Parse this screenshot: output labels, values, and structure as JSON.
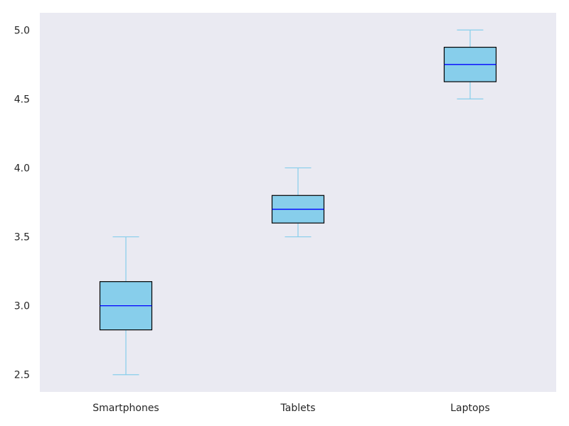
{
  "chart_data": {
    "type": "box",
    "title": "",
    "xlabel": "",
    "ylabel": "",
    "categories": [
      "Smartphones",
      "Tablets",
      "Laptops"
    ],
    "boxes": [
      {
        "category": "Smartphones",
        "min": 2.5,
        "q1": 2.825,
        "median": 3.0,
        "q3": 3.175,
        "max": 3.5
      },
      {
        "category": "Tablets",
        "min": 3.5,
        "q1": 3.6,
        "median": 3.7,
        "q3": 3.8,
        "max": 4.0
      },
      {
        "category": "Laptops",
        "min": 4.5,
        "q1": 4.625,
        "median": 4.75,
        "q3": 4.875,
        "max": 5.0
      }
    ],
    "yticks": [
      "2.5",
      "3.0",
      "3.5",
      "4.0",
      "4.5",
      "5.0"
    ],
    "ylim": [
      2.375,
      5.125
    ],
    "grid": false,
    "colors": {
      "background": "#eaeaf2",
      "box_fill": "#87ceeb",
      "box_edge": "#000000",
      "median": "#0000ff",
      "whisker": "#87ceeb",
      "cap": "#87ceeb"
    }
  }
}
